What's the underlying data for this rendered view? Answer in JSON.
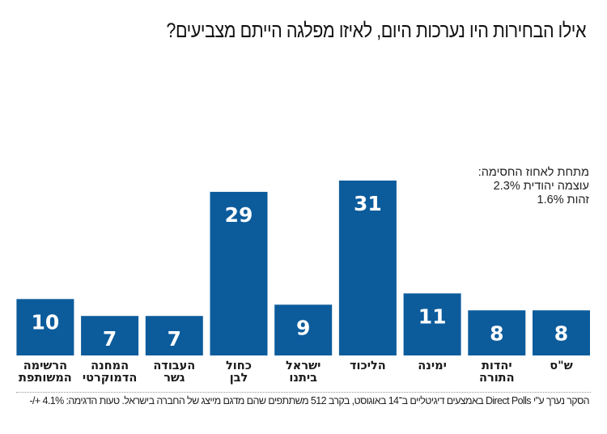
{
  "chart_data": {
    "type": "bar",
    "title": "אילו הבחירות היו נערכות היום, לאיזו מפלגה הייתם מצביעים?",
    "xlabel": "",
    "ylabel": "",
    "ylim": [
      0,
      31
    ],
    "grid": false,
    "bar_color": "#0c5c9c",
    "direction": "rtl",
    "categories": [
      [
        "ש\"ס"
      ],
      [
        "יהדות",
        "התורה"
      ],
      [
        "ימינה"
      ],
      [
        "הליכוד"
      ],
      [
        "ישראל",
        "ביתנו"
      ],
      [
        "כחול",
        "לבן"
      ],
      [
        "העבודה",
        "גשר"
      ],
      [
        "המחנה",
        "הדמוקרטי"
      ],
      [
        "הרשימה",
        "המשותפת"
      ]
    ],
    "values": [
      8,
      8,
      11,
      31,
      9,
      29,
      7,
      7,
      10
    ],
    "annotation": {
      "heading": "מתחת לאחוז החסימה:",
      "lines": [
        "עוצמה יהודית 2.3%",
        "זהות 1.6%"
      ]
    }
  },
  "footnote": "הסקר נערך ע\"י Direct Polls באמצעים דיגיטליים ב־14 באוגוסט, בקרב 512 משתתפים שהם מדגם מייצג של החברה בישראל. טעות הדגימה: 4.1% +/-"
}
